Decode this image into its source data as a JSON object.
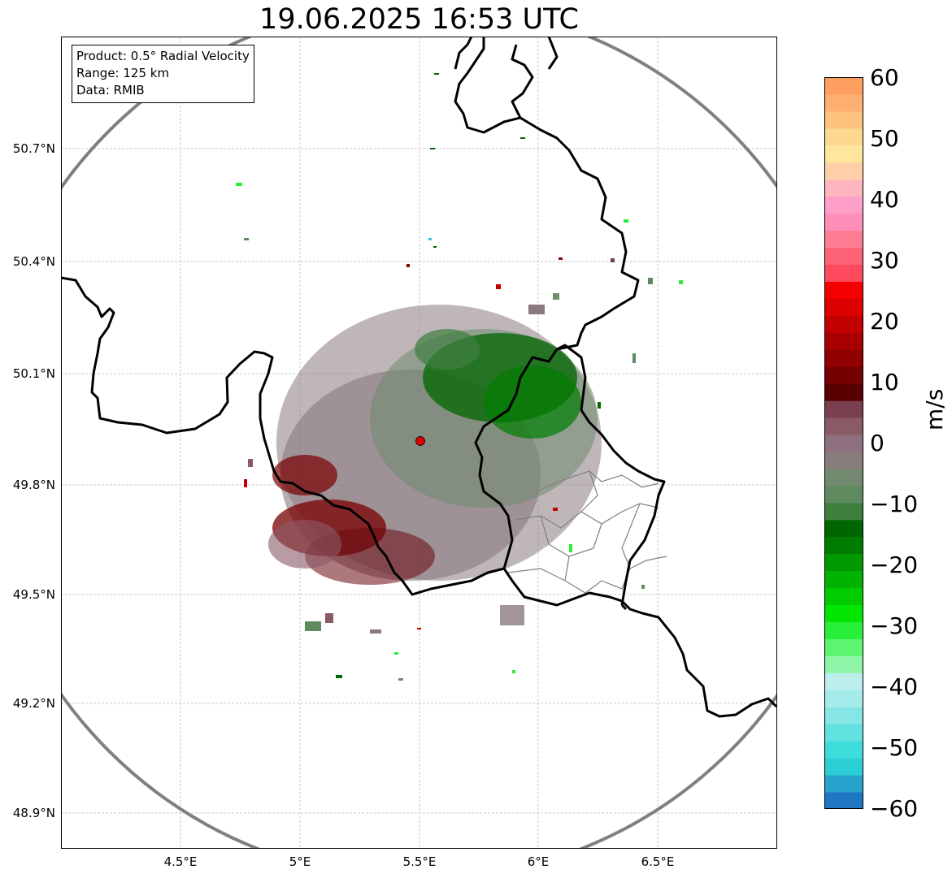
{
  "title": "19.06.2025 16:53 UTC",
  "info": {
    "product": "Product: 0.5° Radial Velocity",
    "range": "Range: 125 km",
    "source": "Data: RMIB"
  },
  "axes": {
    "lat_labels": [
      "50.7°N",
      "50.4°N",
      "50.1°N",
      "49.8°N",
      "49.5°N",
      "49.2°N",
      "48.9°N"
    ],
    "lon_labels": [
      "4.5°E",
      "5°E",
      "5.5°E",
      "6°E",
      "6.5°E"
    ]
  },
  "colorbar": {
    "unit": "m/s",
    "ticks": [
      "60",
      "50",
      "40",
      "30",
      "20",
      "10",
      "0",
      "−10",
      "−20",
      "−30",
      "−40",
      "−50",
      "−60"
    ],
    "range": [
      -60,
      60
    ],
    "colors": [
      "#1f77c4",
      "#26a3cc",
      "#2ccfd6",
      "#3fdcdc",
      "#62e1e1",
      "#86e6e6",
      "#a6ebeb",
      "#bdeeee",
      "#8ff5a8",
      "#5cf570",
      "#2aef38",
      "#00e600",
      "#00cc00",
      "#00b300",
      "#009900",
      "#007d00",
      "#006600",
      "#3e7f3e",
      "#5f8a5f",
      "#738a70",
      "#8a7d7d",
      "#8f7080",
      "#8a5a66",
      "#7a4050",
      "#5a0000",
      "#750000",
      "#900000",
      "#a80000",
      "#c20000",
      "#dc0000",
      "#f50000",
      "#ff4a5e",
      "#ff6378",
      "#ff7c95",
      "#ff8eb8",
      "#ffa0c8",
      "#ffb6bf",
      "#ffd0a8",
      "#ffe69e",
      "#ffd88f",
      "#ffc27f",
      "#ffb070",
      "#ffa060"
    ]
  },
  "radar": {
    "site_color": "#e00000",
    "range_ring_color": "#808080",
    "approaching_color": "#006600",
    "receding_color": "#7a0000",
    "zero_color": "#8a7a80"
  },
  "map": {
    "border_color": "#000000",
    "admin_color": "#808080",
    "grid_color": "#bbbbbb"
  }
}
